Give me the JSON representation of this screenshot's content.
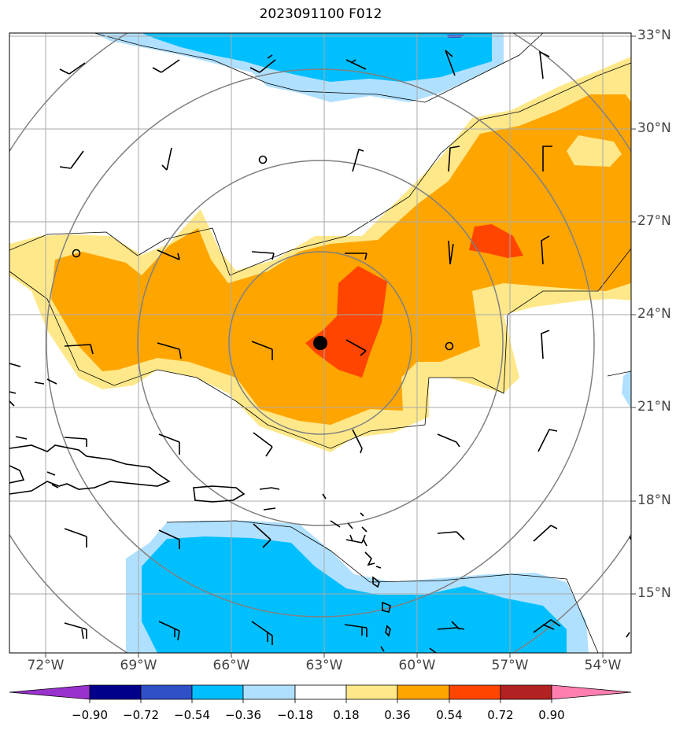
{
  "title": "2023091100 F012",
  "lat_labels": [
    "33°N",
    "30°N",
    "27°N",
    "24°N",
    "21°N",
    "18°N",
    "15°N"
  ],
  "lon_labels": [
    "72°W",
    "69°W",
    "66°W",
    "63°W",
    "60°W",
    "57°W",
    "54°W"
  ],
  "colorbar": {
    "labels": [
      "−0.90",
      "−0.72",
      "−0.54",
      "−0.36",
      "−0.18",
      "0.18",
      "0.36",
      "0.54",
      "0.72",
      "0.90"
    ],
    "colors": [
      "#9932cc",
      "#00008b",
      "#3050c8",
      "#00bfff",
      "#b0e0ff",
      "#ffffff",
      "#ffe88a",
      "#ffa500",
      "#ff4500",
      "#b22222",
      "#ff80b0"
    ]
  },
  "palette": {
    "light_blue": "#b0e0ff",
    "mid_blue": "#00bfff",
    "yellow": "#ffe88a",
    "orange": "#ffa500",
    "red_orange": "#ff4500",
    "grid": "#aaaaaa",
    "range_rings": "#808080"
  },
  "storm_center": {
    "lon": -63.0,
    "lat": 23.4
  }
}
